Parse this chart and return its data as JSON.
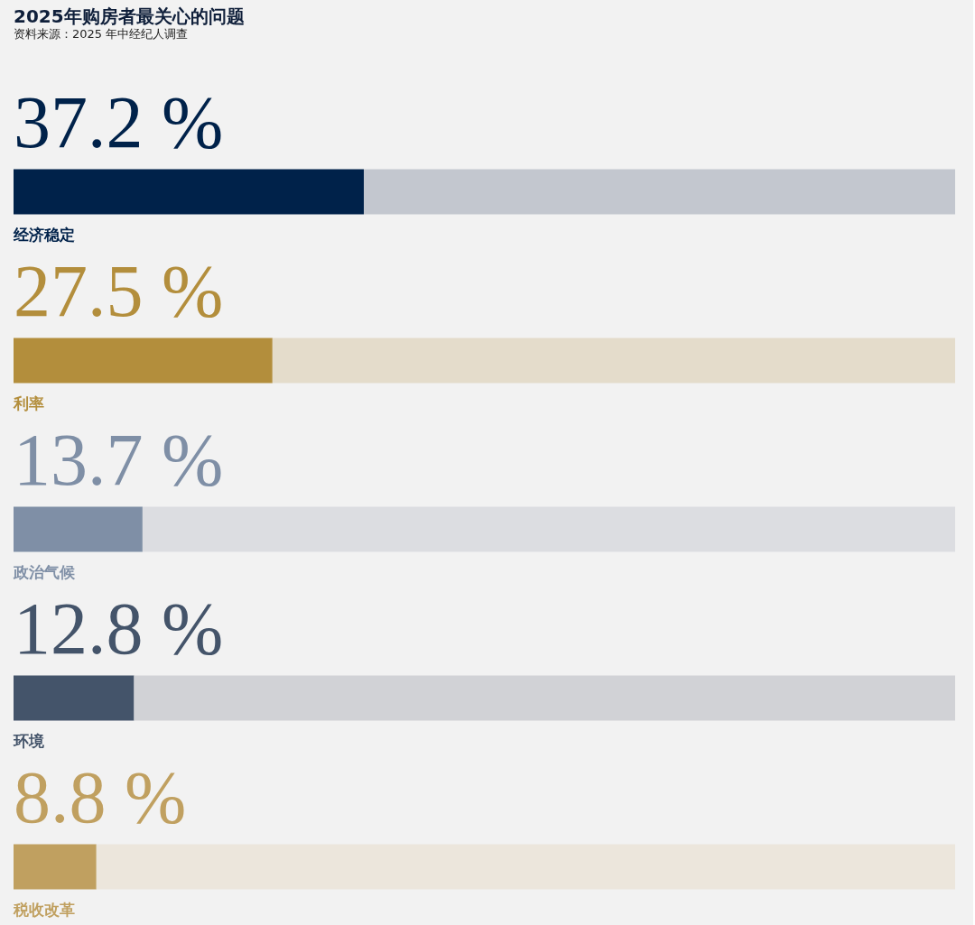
{
  "chart_data": {
    "type": "bar",
    "orientation": "horizontal",
    "stacked": true,
    "title": "2025年购房者最关心的问题",
    "subtitle": "资料来源：2025 年中经纪人调查",
    "categories": [
      "经济稳定",
      "利率",
      "政治气候",
      "环境",
      "税收改革"
    ],
    "series": [
      {
        "values": [
          37.2,
          27.5,
          13.7,
          12.8,
          8.8
        ],
        "colors": [
          "#00224a",
          "#b38e3c",
          "#7f8fa6",
          "#44546a",
          "#c0a060"
        ],
        "value_labels": [
          "37.2 %",
          "27.5 %",
          "13.7 %",
          "12.8 %",
          "8.8 %"
        ]
      },
      {
        "values": [
          62.8,
          72.5,
          86.3,
          87.2,
          91.2
        ],
        "colors": [
          "#c3c7cf",
          "#e4dccb",
          "#dcdde1",
          "#d1d2d6",
          "#ece6dc"
        ]
      }
    ],
    "xlim": [
      0,
      100
    ],
    "tick_labels": false
  }
}
